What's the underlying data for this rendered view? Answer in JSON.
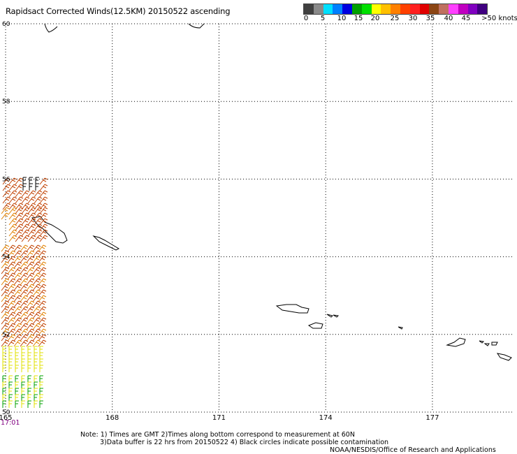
{
  "header": {
    "title": "Rapidsact Corrected Winds(12.5KM) 20150522 ascending"
  },
  "legend": {
    "colors": [
      "#404040",
      "#8a8a8a",
      "#00e0ff",
      "#0080ff",
      "#0000e0",
      "#00a000",
      "#00e000",
      "#ffff00",
      "#ffc000",
      "#ff8000",
      "#ff4000",
      "#ff2020",
      "#e00000",
      "#8b4513",
      "#c07060",
      "#ff40ff",
      "#c000c0",
      "#8000c0",
      "#400080"
    ],
    "labels": [
      "0",
      "5",
      "10",
      "15",
      "20",
      "25",
      "30",
      "35",
      "40",
      "45",
      ">50 knots"
    ]
  },
  "map": {
    "lat_labels": [
      "60",
      "58",
      "56",
      "54",
      "52",
      "50"
    ],
    "lon_labels": [
      "165",
      "168",
      "171",
      "174",
      "177"
    ],
    "lon_range": [
      165,
      179.3
    ],
    "lat_range": [
      50,
      60
    ],
    "swath_time": "17:01",
    "barb_colors": {
      "strong": "#c04000",
      "moderate": "#e08000",
      "light": "#e0e000",
      "calm": "#00a000",
      "dark": "#000000"
    }
  },
  "footer": {
    "note_line1": "Note: 1) Times are GMT 2)Times along bottom correspond to measurement at 60N",
    "note_line2": "3)Data buffer is 22 hrs from 20150522 4) Black circles indicate possible contamination",
    "credit": "NOAA/NESDIS/Office of Research and Applications"
  }
}
